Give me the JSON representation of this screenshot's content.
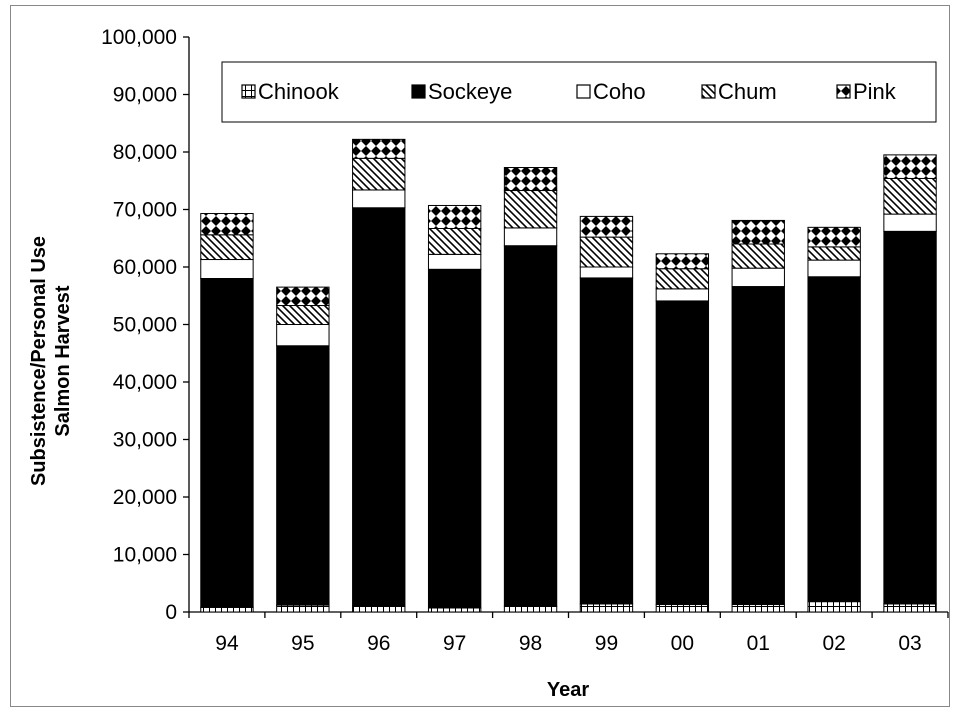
{
  "chart_data": {
    "type": "bar",
    "stacked": true,
    "xlabel": "Year",
    "ylabel_lines": [
      "Subsistence/Personal Use",
      "Salmon Harvest"
    ],
    "ylim": [
      0,
      100000
    ],
    "yticks": [
      0,
      10000,
      20000,
      30000,
      40000,
      50000,
      60000,
      70000,
      80000,
      90000,
      100000
    ],
    "ytick_labels": [
      "0",
      "10,000",
      "20,000",
      "30,000",
      "40,000",
      "50,000",
      "60,000",
      "70,000",
      "80,000",
      "90,000",
      "100,000"
    ],
    "grid": false,
    "legend_position": "top inside plot",
    "categories": [
      "94",
      "95",
      "96",
      "97",
      "98",
      "99",
      "00",
      "01",
      "02",
      "03"
    ],
    "series": [
      {
        "name": "Chinook",
        "pattern": "grid",
        "values": [
          800,
          1200,
          1000,
          700,
          1000,
          1400,
          1300,
          1300,
          1800,
          1400
        ]
      },
      {
        "name": "Sockeye",
        "pattern": "solid",
        "values": [
          57200,
          45100,
          69300,
          58900,
          62700,
          56700,
          52800,
          55300,
          56500,
          64800
        ]
      },
      {
        "name": "Coho",
        "pattern": "white",
        "values": [
          3300,
          3700,
          3100,
          2600,
          3100,
          1900,
          2100,
          3200,
          2900,
          3000
        ]
      },
      {
        "name": "Chum",
        "pattern": "diagonal",
        "values": [
          4300,
          3300,
          5500,
          4500,
          6500,
          5200,
          3500,
          4200,
          2300,
          6200
        ]
      },
      {
        "name": "Pink",
        "pattern": "diamond",
        "values": [
          3700,
          3200,
          3300,
          4000,
          4000,
          3600,
          2600,
          4100,
          3400,
          4100
        ]
      }
    ]
  }
}
